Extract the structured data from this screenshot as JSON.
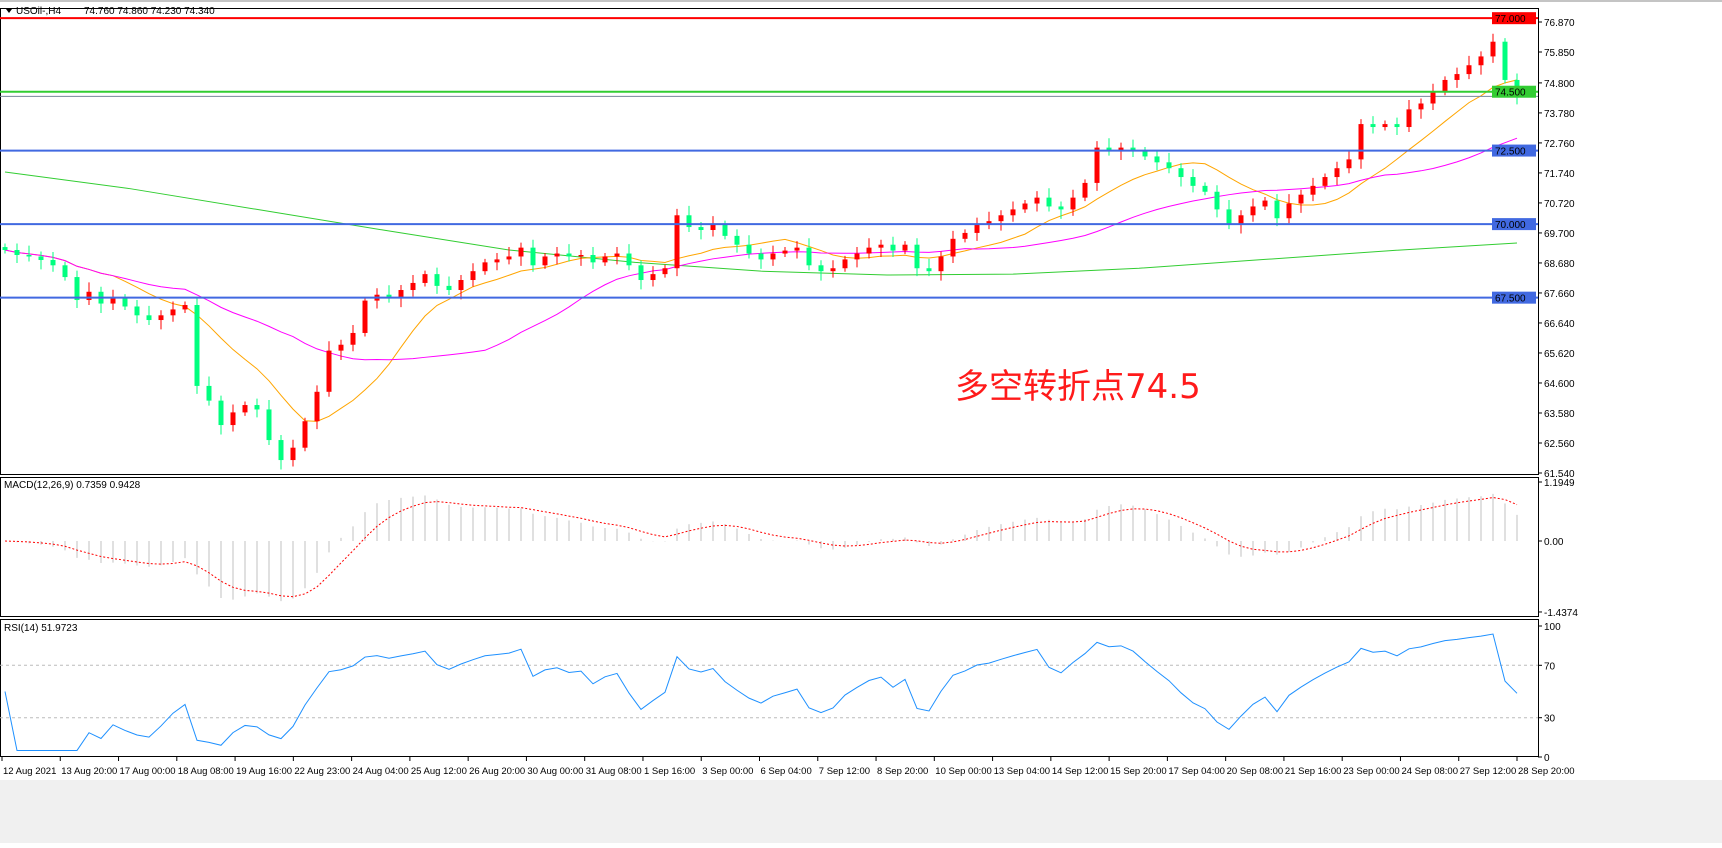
{
  "header": {
    "symbol": "USOil-,H4",
    "ohlc": "74.760 74.860 74.230 74.340"
  },
  "annotation": "多空转折点74.5",
  "colors": {
    "up": "#ff0000",
    "down": "#00ff7f",
    "ma_fast": "#ffa500",
    "ma_mid": "#ff00ff",
    "ma_slow": "#32cd32",
    "macd_hist": "#c0c0c0",
    "macd_signal": "#ff0000",
    "rsi": "#1e90ff"
  },
  "chart_data": [
    {
      "type": "candlestick",
      "title": "USOil-,H4",
      "ylim": [
        61.54,
        76.87
      ],
      "price_ticks": [
        "76.870",
        "75.850",
        "74.800",
        "73.780",
        "72.760",
        "71.740",
        "70.720",
        "69.700",
        "68.680",
        "67.660",
        "66.640",
        "65.620",
        "64.600",
        "63.580",
        "62.560",
        "61.540"
      ],
      "current_price": "74.340",
      "levels": [
        {
          "label": "77.000",
          "value": 77.0,
          "color": "#ff0000"
        },
        {
          "label": "74.500",
          "value": 74.5,
          "color": "#32cd32"
        },
        {
          "label": "72.500",
          "value": 72.5,
          "color": "#4169e1"
        },
        {
          "label": "70.000",
          "value": 70.0,
          "color": "#4169e1"
        },
        {
          "label": "67.500",
          "value": 67.5,
          "color": "#4169e1"
        }
      ],
      "close": [
        69.12,
        68.95,
        68.9,
        68.78,
        68.6,
        68.2,
        67.42,
        67.7,
        67.3,
        67.5,
        67.2,
        66.9,
        66.74,
        66.9,
        67.1,
        67.25,
        64.5,
        64.0,
        63.17,
        63.6,
        63.85,
        63.7,
        62.66,
        61.98,
        62.4,
        63.3,
        64.3,
        65.7,
        65.9,
        66.3,
        67.4,
        67.6,
        67.5,
        67.76,
        68.0,
        68.3,
        67.9,
        67.76,
        68.1,
        68.4,
        68.7,
        68.8,
        68.9,
        69.2,
        68.6,
        68.9,
        69.0,
        68.9,
        68.95,
        68.7,
        68.9,
        69.0,
        68.6,
        68.1,
        68.3,
        68.5,
        70.3,
        69.9,
        69.8,
        70.0,
        69.6,
        69.3,
        69.0,
        68.8,
        69.0,
        69.1,
        69.2,
        68.6,
        68.4,
        68.5,
        68.8,
        69.0,
        69.2,
        69.3,
        69.1,
        69.3,
        68.5,
        68.4,
        68.9,
        69.5,
        69.7,
        70.0,
        70.1,
        70.3,
        70.5,
        70.7,
        70.9,
        70.6,
        70.5,
        70.9,
        71.4,
        72.6,
        72.5,
        72.6,
        72.5,
        72.3,
        72.1,
        71.9,
        71.6,
        71.3,
        71.1,
        70.5,
        70.0,
        70.3,
        70.6,
        70.8,
        70.2,
        70.7,
        71.0,
        71.3,
        71.6,
        71.9,
        72.2,
        73.4,
        73.3,
        73.4,
        73.3,
        73.9,
        74.1,
        74.5,
        74.9,
        75.1,
        75.4,
        75.7,
        76.2,
        74.9,
        74.34
      ],
      "ma_slow": [
        71.77,
        71.2,
        70.5,
        69.8,
        69.12,
        68.7,
        68.4,
        68.27,
        68.3,
        68.5,
        68.8,
        69.1,
        69.36
      ],
      "x_ticks": [
        "12 Aug 2021",
        "13 Aug 20:00",
        "17 Aug 00:00",
        "18 Aug 08:00",
        "19 Aug 16:00",
        "22 Aug 23:00",
        "24 Aug 04:00",
        "25 Aug 12:00",
        "26 Aug 20:00",
        "30 Aug 00:00",
        "31 Aug 08:00",
        "1 Sep 16:00",
        "3 Sep 00:00",
        "6 Sep 04:00",
        "7 Sep 12:00",
        "8 Sep 20:00",
        "10 Sep 00:00",
        "13 Sep 04:00",
        "14 Sep 12:00",
        "15 Sep 20:00",
        "17 Sep 04:00",
        "20 Sep 08:00",
        "21 Sep 16:00",
        "23 Sep 00:00",
        "24 Sep 08:00",
        "27 Sep 12:00",
        "28 Sep 20:00"
      ]
    },
    {
      "type": "bar",
      "title": "MACD(12,26,9) 0.7359 0.9428",
      "ylim": [
        -1.4374,
        1.1949
      ],
      "ticks": [
        "1.1949",
        "0.00",
        "-1.4374"
      ]
    },
    {
      "type": "line",
      "title": "RSI(14) 51.9723",
      "ylim": [
        0,
        100
      ],
      "levels": [
        70,
        30
      ],
      "ticks": [
        "100",
        "70",
        "30",
        "0"
      ]
    }
  ]
}
